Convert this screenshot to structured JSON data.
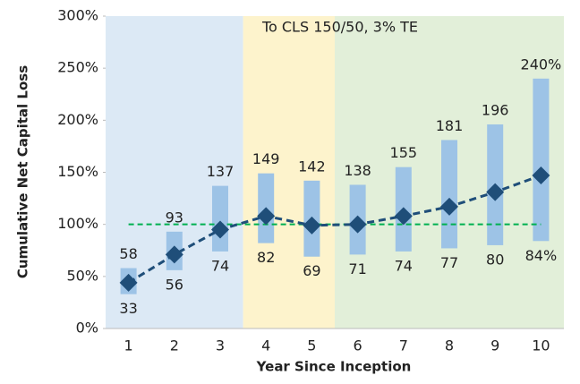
{
  "chart_data": {
    "type": "range_bar",
    "annotation": "To CLS 150/50, 3% TE",
    "x_label": "Year Since Inception",
    "y_label": "Cumulative Net Capital Loss",
    "categories": [
      "1",
      "2",
      "3",
      "4",
      "5",
      "6",
      "7",
      "8",
      "9",
      "10"
    ],
    "low": {
      "values": [
        33,
        56,
        74,
        82,
        69,
        71,
        74,
        77,
        80,
        84
      ],
      "value_labels": [
        "33",
        "56",
        "74",
        "82",
        "69",
        "71",
        "74",
        "77",
        "80",
        "84%"
      ]
    },
    "high": {
      "values": [
        58,
        93,
        137,
        149,
        142,
        138,
        155,
        181,
        196,
        240
      ],
      "value_labels": [
        "58",
        "93",
        "137",
        "149",
        "142",
        "138",
        "155",
        "181",
        "196",
        "240%"
      ]
    },
    "bar_color": "#9dc3e6",
    "mean": {
      "values": [
        44,
        71,
        95,
        108,
        99,
        100,
        108,
        117,
        131,
        147
      ],
      "color": "#1f4e79"
    },
    "reference_line": {
      "value": 100,
      "color": "#00b050"
    },
    "regions": [
      {
        "from": 0,
        "to": 2,
        "color": "#dce9f5"
      },
      {
        "from": 3,
        "to": 4,
        "color": "#fdf3cc"
      },
      {
        "from": 5,
        "to": 9,
        "color": "#e2efd9"
      }
    ],
    "ylim": [
      0,
      300
    ],
    "yticks": [
      {
        "value": 0,
        "label": "0%"
      },
      {
        "value": 50,
        "label": "50%"
      },
      {
        "value": 100,
        "label": "100%"
      },
      {
        "value": 150,
        "label": "150%"
      },
      {
        "value": 200,
        "label": "200%"
      },
      {
        "value": 250,
        "label": "250%"
      },
      {
        "value": 300,
        "label": "300%"
      }
    ]
  }
}
